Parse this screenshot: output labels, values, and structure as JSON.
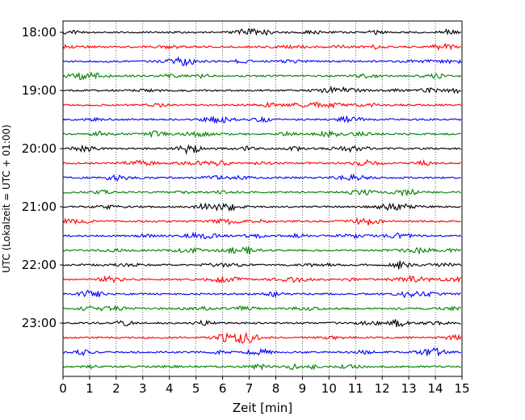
{
  "chart_data": {
    "type": "line",
    "title": "",
    "xlabel": "Zeit  [min]",
    "ylabel": "UTC (Lokalzeit = UTC + 01:00)",
    "xlim": [
      0,
      15
    ],
    "x_ticks": [
      "0",
      "1",
      "2",
      "3",
      "4",
      "5",
      "6",
      "7",
      "8",
      "9",
      "10",
      "11",
      "12",
      "13",
      "14",
      "15"
    ],
    "y_tick_labels": [
      "18:00",
      "19:00",
      "20:00",
      "21:00",
      "22:00",
      "23:00"
    ],
    "grid": "vertical dotted",
    "trace_colors": [
      "#000000",
      "#ff0000",
      "#0000ff",
      "#008000"
    ],
    "traces": [
      {
        "start": "18:00",
        "color": "#000000"
      },
      {
        "start": "18:15",
        "color": "#ff0000"
      },
      {
        "start": "18:30",
        "color": "#0000ff"
      },
      {
        "start": "18:45",
        "color": "#008000"
      },
      {
        "start": "19:00",
        "color": "#000000"
      },
      {
        "start": "19:15",
        "color": "#ff0000"
      },
      {
        "start": "19:30",
        "color": "#0000ff"
      },
      {
        "start": "19:45",
        "color": "#008000"
      },
      {
        "start": "20:00",
        "color": "#000000"
      },
      {
        "start": "20:15",
        "color": "#ff0000"
      },
      {
        "start": "20:30",
        "color": "#0000ff"
      },
      {
        "start": "20:45",
        "color": "#008000"
      },
      {
        "start": "21:00",
        "color": "#000000"
      },
      {
        "start": "21:15",
        "color": "#ff0000"
      },
      {
        "start": "21:30",
        "color": "#0000ff"
      },
      {
        "start": "21:45",
        "color": "#008000"
      },
      {
        "start": "22:00",
        "color": "#000000"
      },
      {
        "start": "22:15",
        "color": "#ff0000"
      },
      {
        "start": "22:30",
        "color": "#0000ff"
      },
      {
        "start": "22:45",
        "color": "#008000"
      },
      {
        "start": "23:00",
        "color": "#000000"
      },
      {
        "start": "23:15",
        "color": "#ff0000"
      },
      {
        "start": "23:30",
        "color": "#0000ff"
      },
      {
        "start": "23:45",
        "color": "#008000"
      }
    ]
  }
}
